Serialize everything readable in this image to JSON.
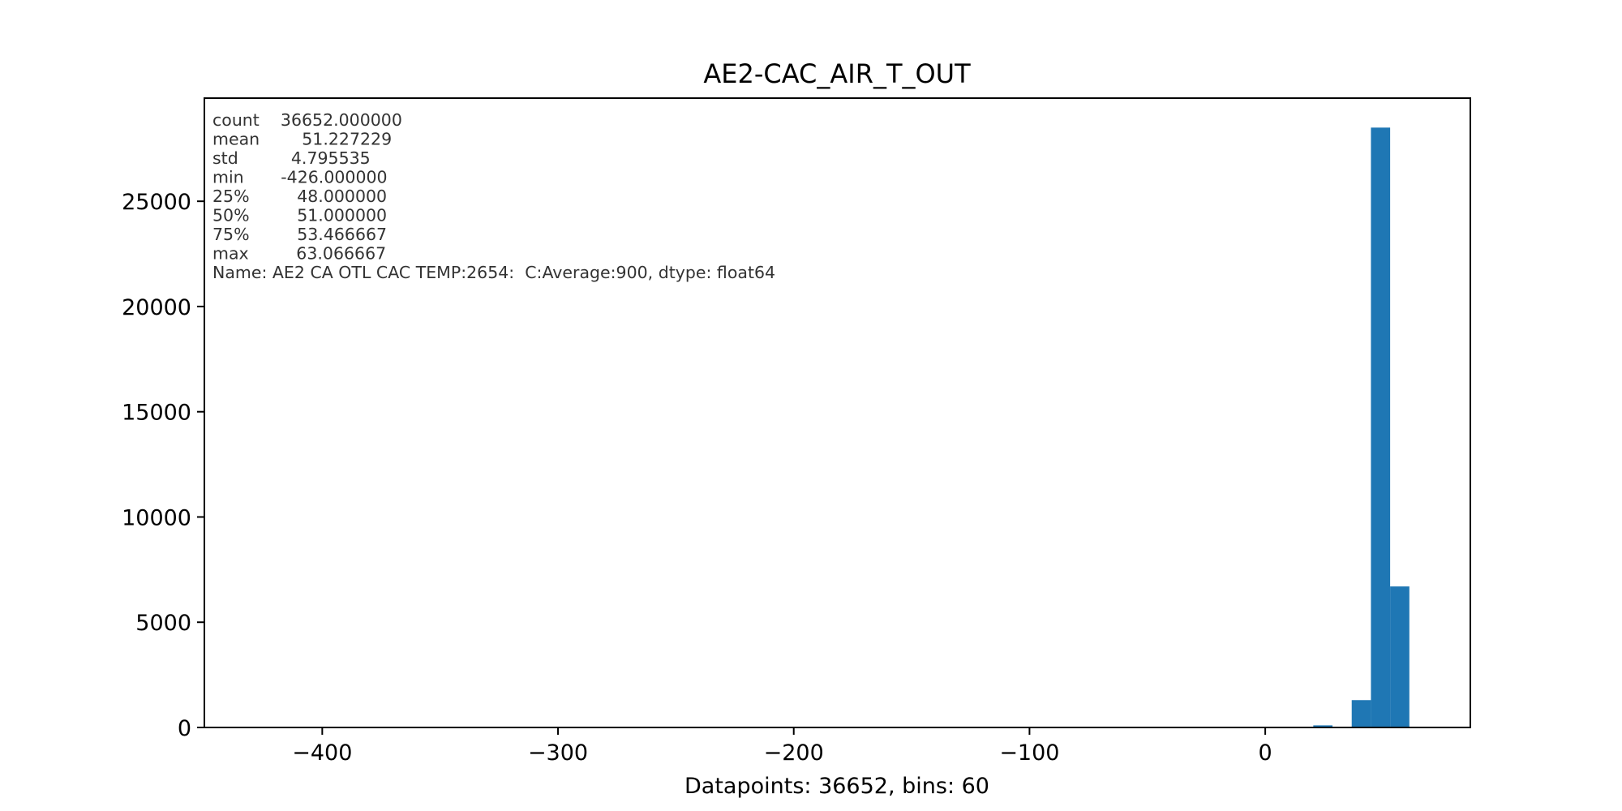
{
  "chart_data": {
    "type": "bar",
    "title": "AE2-CAC_AIR_T_OUT",
    "xlabel": "Datapoints: 36652, bins: 60",
    "ylabel": "",
    "xlim": [
      -450,
      87
    ],
    "ylim": [
      0,
      29900
    ],
    "bin_width": 8.151,
    "bins": [
      {
        "x0": 20.38,
        "x1": 28.53,
        "count": 100
      },
      {
        "x0": 28.53,
        "x1": 36.68,
        "count": 0
      },
      {
        "x0": 36.68,
        "x1": 44.83,
        "count": 1300
      },
      {
        "x0": 44.83,
        "x1": 52.98,
        "count": 28500
      },
      {
        "x0": 52.98,
        "x1": 61.13,
        "count": 6700
      },
      {
        "x0": 61.13,
        "x1": 69.28,
        "count": 0
      }
    ],
    "x_ticks": [
      {
        "value": -400,
        "label": "−400"
      },
      {
        "value": -300,
        "label": "−300"
      },
      {
        "value": -200,
        "label": "−200"
      },
      {
        "value": -100,
        "label": "−100"
      },
      {
        "value": 0,
        "label": "0"
      }
    ],
    "y_ticks": [
      {
        "value": 0,
        "label": "0"
      },
      {
        "value": 5000,
        "label": "5000"
      },
      {
        "value": 10000,
        "label": "10000"
      },
      {
        "value": 15000,
        "label": "15000"
      },
      {
        "value": 20000,
        "label": "20000"
      },
      {
        "value": 25000,
        "label": "25000"
      }
    ],
    "bar_color": "#1f77b4",
    "grid": false,
    "annotation_lines": [
      "count    36652.000000",
      "mean        51.227229",
      "std          4.795535",
      "min       -426.000000",
      "25%         48.000000",
      "50%         51.000000",
      "75%         53.466667",
      "max         63.066667",
      "Name: AE2 CA OTL CAC TEMP:2654:  C:Average:900, dtype: float64"
    ]
  }
}
